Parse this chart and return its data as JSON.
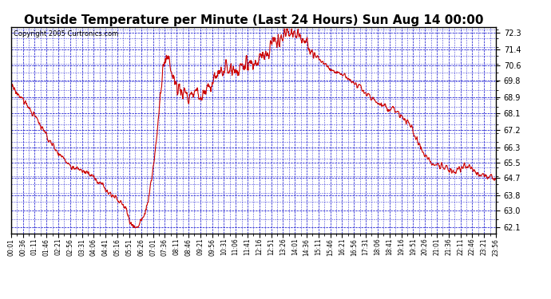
{
  "title": "Outside Temperature per Minute (Last 24 Hours) Sun Aug 14 00:00",
  "copyright": "Copyright 2005 Curtronics.com",
  "yticks": [
    62.1,
    63.0,
    63.8,
    64.7,
    65.5,
    66.3,
    67.2,
    68.1,
    68.9,
    69.8,
    70.6,
    71.4,
    72.3
  ],
  "ylim": [
    61.8,
    72.6
  ],
  "xtick_labels": [
    "00:01",
    "00:36",
    "01:11",
    "01:46",
    "02:21",
    "02:56",
    "03:31",
    "04:06",
    "04:41",
    "05:16",
    "05:51",
    "06:26",
    "07:01",
    "07:36",
    "08:11",
    "08:46",
    "09:21",
    "09:56",
    "10:31",
    "11:06",
    "11:41",
    "12:16",
    "12:51",
    "13:26",
    "14:01",
    "14:36",
    "15:11",
    "15:46",
    "16:21",
    "16:56",
    "17:31",
    "18:06",
    "18:41",
    "19:16",
    "19:51",
    "20:26",
    "21:01",
    "21:36",
    "22:11",
    "22:46",
    "23:21",
    "23:56"
  ],
  "line_color": "#cc0000",
  "background_color": "#ffffff",
  "grid_color": "#0000cc",
  "title_fontsize": 11,
  "axis_bg": "#ffffff",
  "figwidth": 6.9,
  "figheight": 3.75,
  "dpi": 100
}
